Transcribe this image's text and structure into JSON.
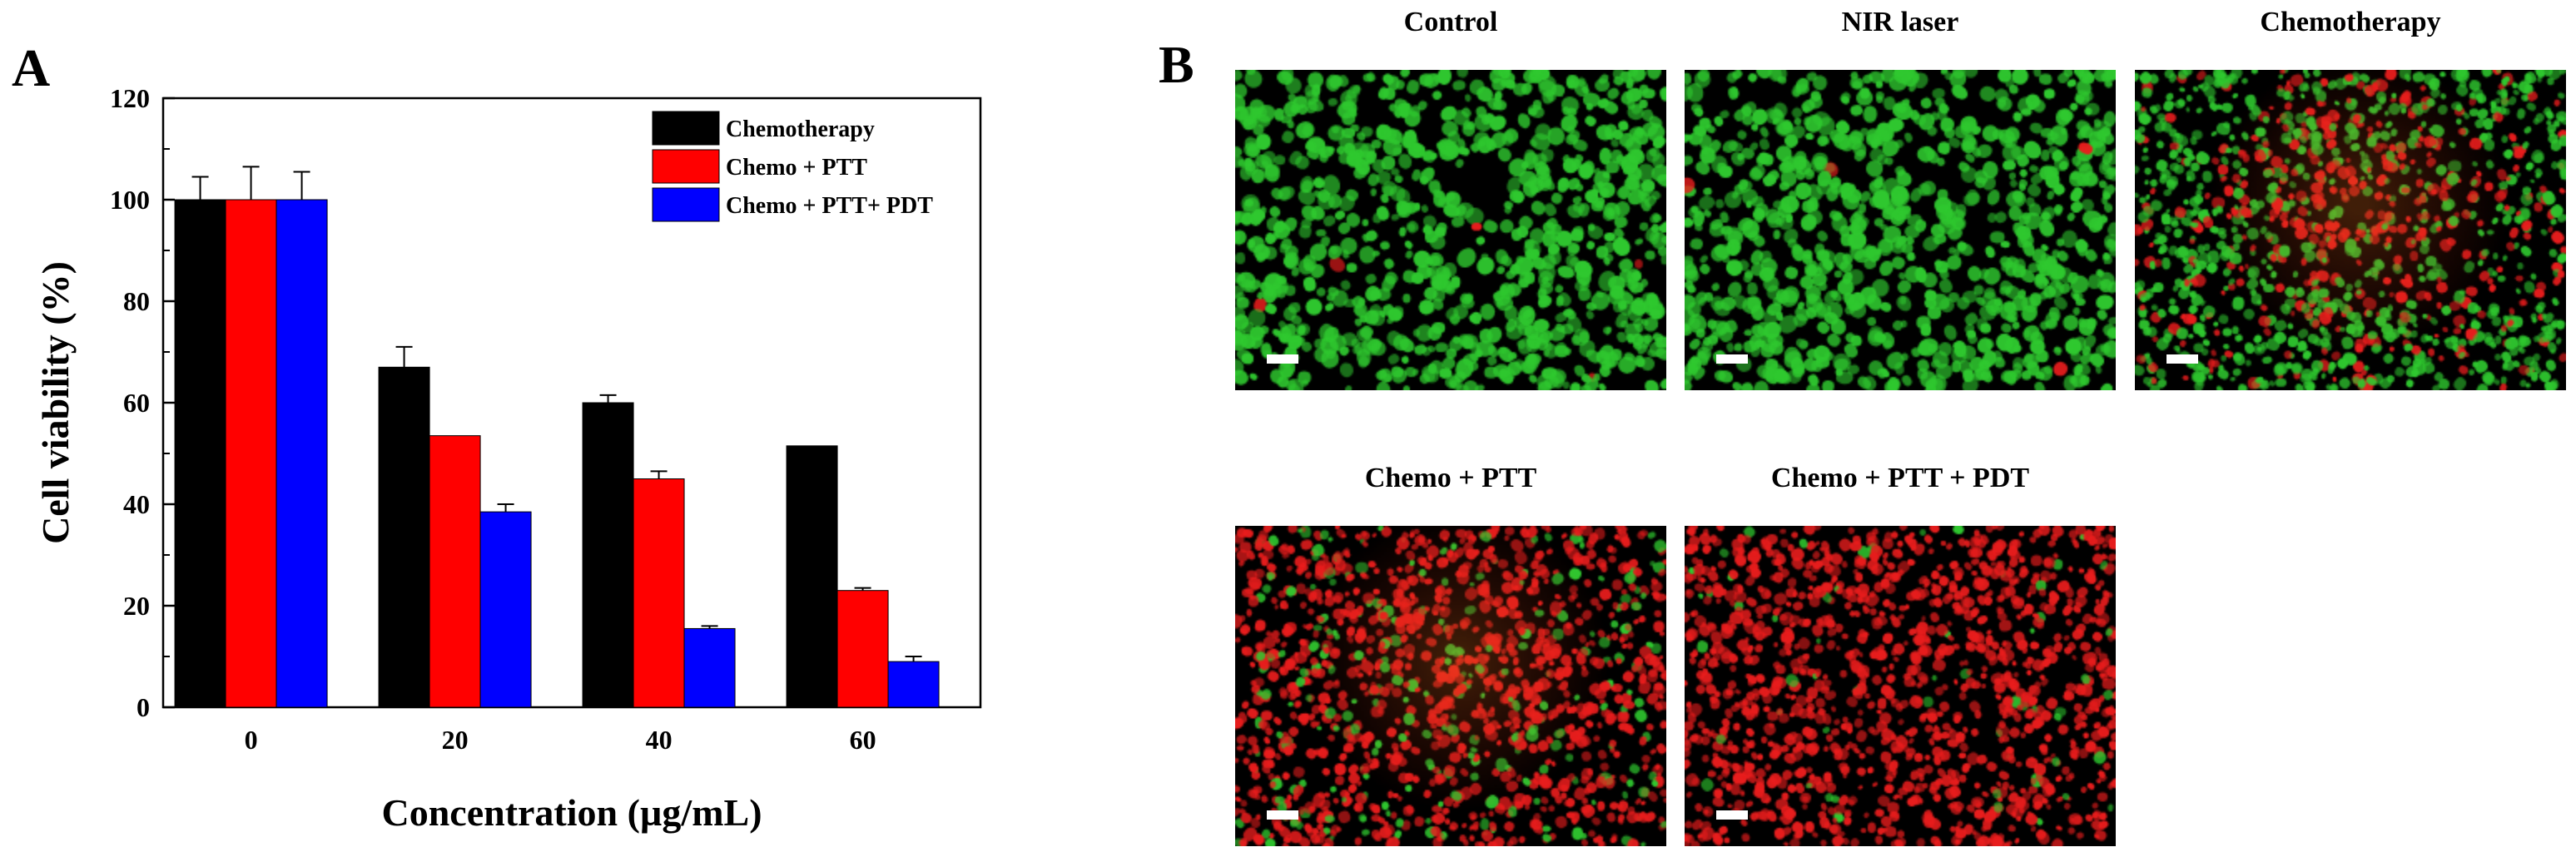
{
  "panels": {
    "a_label": "A",
    "b_label": "B"
  },
  "chart_data": {
    "type": "bar",
    "title": "",
    "xlabel": "Concentration (µg/mL)",
    "ylabel": "Cell viability (%)",
    "ylim": [
      0,
      120
    ],
    "yticks": [
      0,
      20,
      40,
      60,
      80,
      100,
      120
    ],
    "categories": [
      "0",
      "20",
      "40",
      "60"
    ],
    "series": [
      {
        "name": "Chemotherapy",
        "color": "#000000",
        "values": [
          100,
          67,
          60,
          51.5
        ],
        "errors": [
          4.5,
          4,
          1.5,
          0
        ]
      },
      {
        "name": "Chemo + PTT",
        "color": "#ff0000",
        "values": [
          100,
          53.5,
          45,
          23
        ],
        "errors": [
          6.5,
          0,
          1.5,
          0.5
        ]
      },
      {
        "name": "Chemo + PTT+ PDT",
        "color": "#0000ff",
        "values": [
          100,
          38.5,
          15.5,
          9
        ],
        "errors": [
          5.5,
          1.5,
          0.5,
          1
        ]
      }
    ],
    "legend_position": "top-right",
    "grid": false
  },
  "images": [
    {
      "title": "Control",
      "stain": "green"
    },
    {
      "title": "NIR laser",
      "stain": "green"
    },
    {
      "title": "Chemotherapy",
      "stain": "mixed-center"
    },
    {
      "title": "Chemo + PTT",
      "stain": "mostly-red-center"
    },
    {
      "title": "Chemo + PTT + PDT",
      "stain": "red"
    }
  ],
  "colors": {
    "live_cells": "#2fc82f",
    "dead_cells": "#e81d1d",
    "background": "#000000"
  }
}
